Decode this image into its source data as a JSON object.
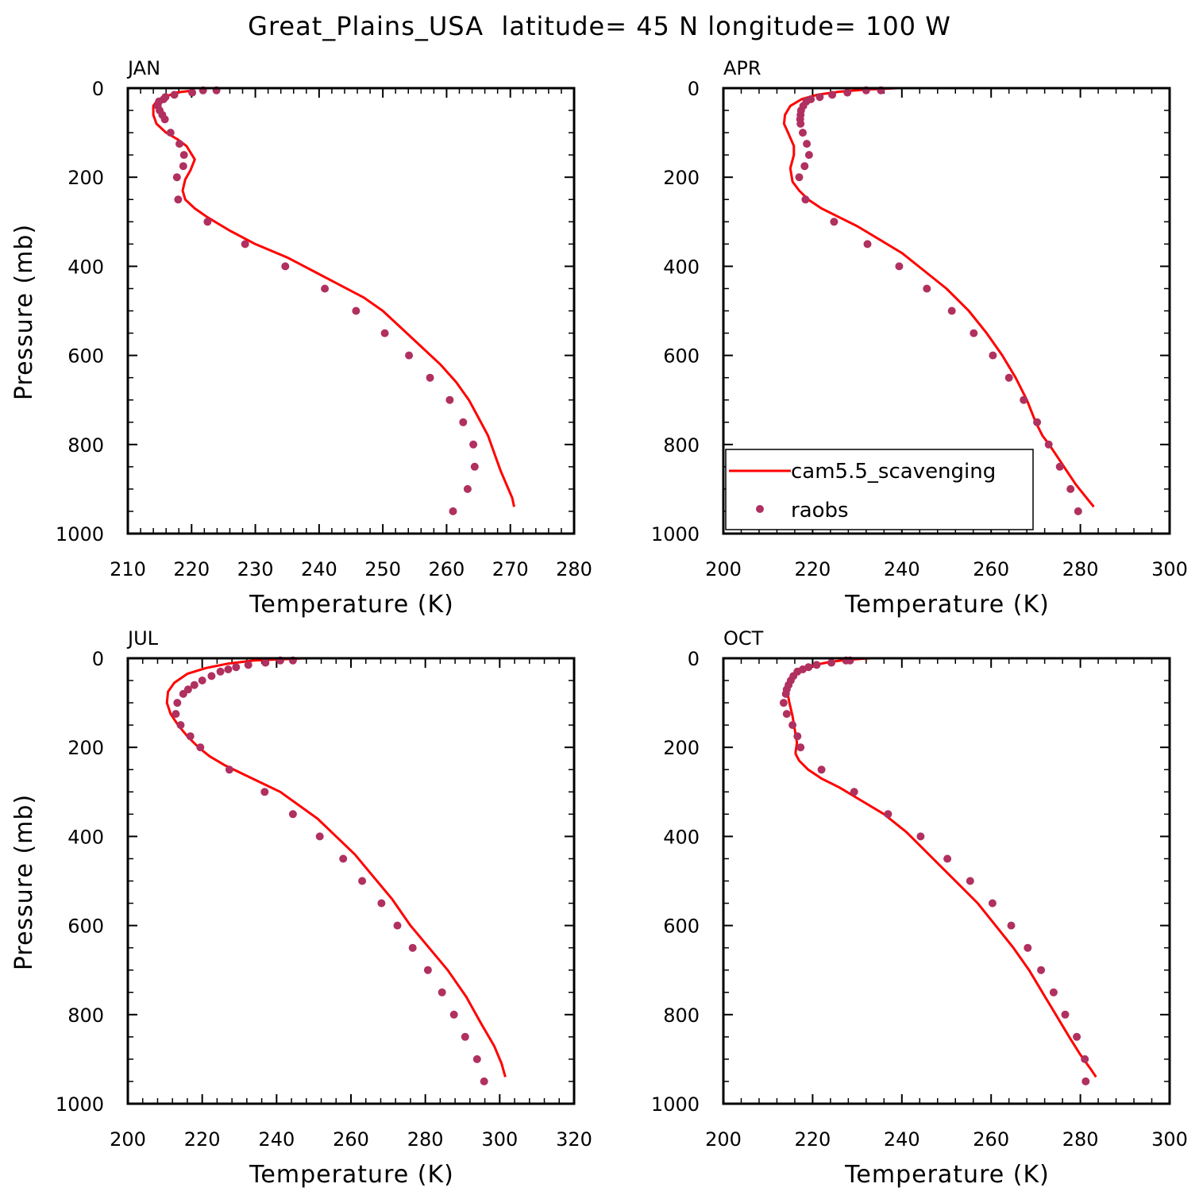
{
  "figure_title": "Great_Plains_USA  latitude= 45 N longitude= 100 W",
  "colors": {
    "model": "#ff0000",
    "obs": "#b03060",
    "axis": "#000000"
  },
  "legend": {
    "model_label": "cam5.5_scavenging",
    "obs_label": "raobs",
    "panel": "APR",
    "placement": "lower-left"
  },
  "chart_data": [
    {
      "type": "line",
      "title": "JAN",
      "xlabel": "Temperature (K)",
      "ylabel": "Pressure (mb)",
      "xlim": [
        210,
        280
      ],
      "ylim": [
        1000,
        0
      ],
      "xticks": [
        210,
        220,
        230,
        240,
        250,
        260,
        270,
        280
      ],
      "yticks": [
        0,
        200,
        400,
        600,
        800,
        1000
      ],
      "series": [
        {
          "name": "cam5.5_scavenging",
          "kind": "line",
          "x": [
            220.5,
            217.5,
            215.8,
            214.5,
            214.0,
            214.0,
            214.5,
            216.0,
            217.8,
            219.2,
            220.5,
            219.8,
            219.0,
            218.6,
            219.0,
            220.5,
            222.5,
            226.0,
            230.0,
            235.0,
            239.0,
            243.0,
            247.0,
            250.0,
            253.0,
            256.0,
            259.0,
            261.5,
            263.5,
            265.0,
            266.5,
            267.5,
            268.5,
            269.7,
            270.3,
            270.6
          ],
          "y": [
            5,
            10,
            20,
            30,
            40,
            60,
            80,
            100,
            115,
            130,
            160,
            185,
            205,
            230,
            250,
            270,
            290,
            320,
            350,
            380,
            410,
            440,
            470,
            500,
            540,
            580,
            620,
            660,
            700,
            740,
            780,
            820,
            860,
            900,
            920,
            940
          ]
        },
        {
          "name": "raobs",
          "kind": "scatter",
          "x": [
            223.9,
            221.8,
            220.1,
            217.3,
            215.9,
            215.6,
            214.9,
            214.7,
            215.0,
            215.4,
            215.8,
            216.7,
            218.1,
            218.8,
            218.7,
            217.7,
            217.9,
            222.5,
            228.4,
            234.7,
            240.9,
            245.8,
            250.3,
            254.1,
            257.4,
            260.5,
            262.6,
            264.2,
            264.4,
            263.3,
            261.0
          ],
          "y": [
            5,
            5,
            10,
            15,
            20,
            25,
            30,
            40,
            50,
            60,
            70,
            100,
            125,
            150,
            175,
            200,
            250,
            300,
            350,
            400,
            450,
            500,
            550,
            600,
            650,
            700,
            750,
            800,
            850,
            900,
            950
          ]
        }
      ]
    },
    {
      "type": "line",
      "title": "APR",
      "xlabel": "Temperature (K)",
      "ylabel": "",
      "xlim": [
        200,
        300
      ],
      "ylim": [
        1000,
        0
      ],
      "xticks": [
        200,
        220,
        240,
        260,
        280,
        300
      ],
      "yticks": [
        0,
        200,
        400,
        600,
        800,
        1000
      ],
      "series": [
        {
          "name": "cam5.5_scavenging",
          "kind": "line",
          "x": [
            239.0,
            232.0,
            226.0,
            221.0,
            217.5,
            215.0,
            213.8,
            213.6,
            214.5,
            215.8,
            215.8,
            215.0,
            215.5,
            217.0,
            219.0,
            222.0,
            226.0,
            230.0,
            235.0,
            240.0,
            245.0,
            250.0,
            255.0,
            259.0,
            262.5,
            265.5,
            268.0,
            270.0,
            271.5,
            273.0,
            275.0,
            277.0,
            279.0,
            281.0,
            283.0
          ],
          "y": [
            0,
            3,
            8,
            15,
            25,
            40,
            60,
            80,
            100,
            130,
            150,
            180,
            210,
            230,
            250,
            270,
            290,
            310,
            340,
            370,
            410,
            450,
            500,
            550,
            600,
            650,
            700,
            750,
            780,
            800,
            830,
            860,
            890,
            915,
            940
          ]
        },
        {
          "name": "raobs",
          "kind": "scatter",
          "x": [
            235.3,
            232.0,
            227.8,
            224.4,
            221.6,
            219.6,
            218.6,
            217.9,
            217.4,
            217.3,
            217.2,
            217.3,
            217.8,
            218.7,
            219.2,
            218.2,
            217.0,
            218.4,
            224.8,
            232.3,
            239.4,
            245.6,
            251.2,
            256.1,
            260.4,
            264.0,
            267.3,
            270.3,
            272.9,
            275.4,
            277.8,
            279.5
          ],
          "y": [
            5,
            5,
            10,
            15,
            20,
            25,
            30,
            40,
            50,
            60,
            70,
            80,
            100,
            125,
            150,
            175,
            200,
            250,
            300,
            350,
            400,
            450,
            500,
            550,
            600,
            650,
            700,
            750,
            800,
            850,
            900,
            950
          ]
        }
      ]
    },
    {
      "type": "line",
      "title": "JUL",
      "xlabel": "Temperature (K)",
      "ylabel": "Pressure (mb)",
      "xlim": [
        200,
        320
      ],
      "ylim": [
        1000,
        0
      ],
      "xticks": [
        200,
        220,
        240,
        260,
        280,
        300,
        320
      ],
      "yticks": [
        0,
        200,
        400,
        600,
        800,
        1000
      ],
      "series": [
        {
          "name": "cam5.5_scavenging",
          "kind": "line",
          "x": [
            248.0,
            242.0,
            234.0,
            227.0,
            221.0,
            216.0,
            212.5,
            210.8,
            210.5,
            211.5,
            213.5,
            216.0,
            219.0,
            222.0,
            226.0,
            231.0,
            236.0,
            241.0,
            246.0,
            251.0,
            256.0,
            261.0,
            266.0,
            271.0,
            276.0,
            281.0,
            286.0,
            291.0,
            295.0,
            298.5,
            300.5,
            301.5
          ],
          "y": [
            0,
            2,
            5,
            12,
            22,
            35,
            55,
            75,
            100,
            125,
            150,
            175,
            200,
            220,
            240,
            260,
            280,
            300,
            330,
            360,
            400,
            440,
            490,
            540,
            600,
            650,
            700,
            760,
            820,
            870,
            910,
            940
          ]
        },
        {
          "name": "raobs",
          "kind": "scatter",
          "x": [
            244.4,
            241.0,
            237.0,
            232.4,
            229.1,
            227.0,
            224.9,
            222.5,
            220.0,
            217.9,
            216.2,
            214.9,
            213.3,
            212.9,
            214.2,
            216.8,
            219.5,
            227.3,
            236.8,
            244.4,
            251.6,
            257.9,
            263.0,
            268.2,
            272.5,
            276.6,
            280.7,
            284.5,
            287.7,
            290.7,
            293.9,
            295.8
          ],
          "y": [
            5,
            5,
            10,
            15,
            20,
            25,
            30,
            40,
            50,
            60,
            70,
            80,
            100,
            125,
            150,
            175,
            200,
            250,
            300,
            350,
            400,
            450,
            500,
            550,
            600,
            650,
            700,
            750,
            800,
            850,
            900,
            950
          ]
        }
      ]
    },
    {
      "type": "line",
      "title": "OCT",
      "xlabel": "Temperature (K)",
      "ylabel": "",
      "xlim": [
        200,
        300
      ],
      "ylim": [
        1000,
        0
      ],
      "xticks": [
        200,
        220,
        240,
        260,
        280,
        300
      ],
      "yticks": [
        0,
        200,
        400,
        600,
        800,
        1000
      ],
      "series": [
        {
          "name": "cam5.5_scavenging",
          "kind": "line",
          "x": [
            233.0,
            228.0,
            224.0,
            220.5,
            218.0,
            216.0,
            214.8,
            214.3,
            214.8,
            215.5,
            216.0,
            216.5,
            216.2,
            216.2,
            217.0,
            219.0,
            222.0,
            226.0,
            231.0,
            236.0,
            241.0,
            245.0,
            249.0,
            253.0,
            257.0,
            261.0,
            265.0,
            268.5,
            271.5,
            274.5,
            277.5,
            280.0,
            282.5,
            283.5
          ],
          "y": [
            0,
            3,
            8,
            15,
            25,
            40,
            55,
            75,
            100,
            130,
            160,
            190,
            210,
            215,
            230,
            250,
            270,
            290,
            320,
            350,
            390,
            430,
            470,
            510,
            550,
            600,
            650,
            700,
            750,
            800,
            850,
            890,
            925,
            940
          ]
        },
        {
          "name": "raobs",
          "kind": "scatter",
          "x": [
            228.4,
            227.5,
            224.2,
            220.9,
            219.1,
            217.8,
            216.6,
            215.7,
            215.1,
            214.6,
            214.2,
            214.0,
            213.5,
            214.2,
            215.5,
            216.6,
            217.3,
            222.0,
            229.3,
            236.9,
            244.2,
            250.2,
            255.3,
            260.3,
            264.5,
            268.2,
            271.2,
            274.0,
            276.6,
            279.2,
            281.0,
            281.2
          ],
          "y": [
            5,
            5,
            10,
            15,
            20,
            25,
            30,
            40,
            50,
            60,
            70,
            80,
            100,
            125,
            150,
            175,
            200,
            250,
            300,
            350,
            400,
            450,
            500,
            550,
            600,
            650,
            700,
            750,
            800,
            850,
            900,
            950
          ]
        }
      ]
    }
  ]
}
